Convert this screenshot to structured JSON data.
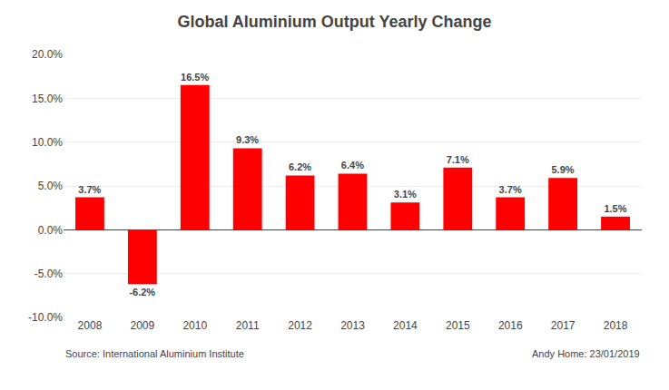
{
  "chart_data": {
    "type": "bar",
    "title": "Global Aluminium Output Yearly Change",
    "categories": [
      "2008",
      "2009",
      "2010",
      "2011",
      "2012",
      "2013",
      "2014",
      "2015",
      "2016",
      "2017",
      "2018"
    ],
    "values": [
      3.7,
      -6.2,
      16.5,
      9.3,
      6.2,
      6.4,
      3.1,
      7.1,
      3.7,
      5.9,
      1.5
    ],
    "value_labels": [
      "3.7%",
      "-6.2%",
      "16.5%",
      "9.3%",
      "6.2%",
      "6.4%",
      "3.1%",
      "7.1%",
      "3.7%",
      "5.9%",
      "1.5%"
    ],
    "data_labels": true,
    "color": "#ff0000",
    "ylim": [
      -10.0,
      20.0
    ],
    "yticks": [
      {
        "value": -10.0,
        "label": "-10.0%"
      },
      {
        "value": -5.0,
        "label": "-5.0%"
      },
      {
        "value": 0.0,
        "label": "0.0%"
      },
      {
        "value": 5.0,
        "label": "5.0%"
      },
      {
        "value": 10.0,
        "label": "10.0%"
      },
      {
        "value": 15.0,
        "label": "15.0%"
      },
      {
        "value": 20.0,
        "label": "20.0%"
      }
    ],
    "grid": true,
    "annotations": [
      "Source: International Aluminium Institute",
      "Andy Home: 23/01/2019"
    ]
  }
}
